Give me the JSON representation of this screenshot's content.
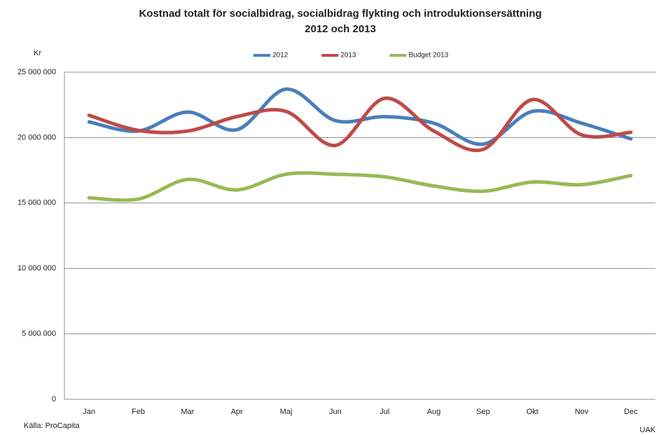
{
  "chart_data": {
    "type": "line",
    "title": [
      "Kostnad totalt för socialbidrag, socialbidrag flykting och introduktionsersättning",
      "2012 och 2013"
    ],
    "y_label": "Kr",
    "categories": [
      "Jan",
      "Feb",
      "Mar",
      "Apr",
      "Maj",
      "Jun",
      "Jul",
      "Aug",
      "Sep",
      "Okt",
      "Nov",
      "Dec"
    ],
    "series": [
      {
        "name": "2012",
        "color": "#4a7ebb",
        "values": [
          21200000,
          20500000,
          21950000,
          20600000,
          23700000,
          21300000,
          21600000,
          21100000,
          19500000,
          22000000,
          21100000,
          19900000
        ]
      },
      {
        "name": "2013",
        "color": "#be4b48",
        "values": [
          21700000,
          20550000,
          20500000,
          21600000,
          22000000,
          19400000,
          23000000,
          20500000,
          19100000,
          22900000,
          20200000,
          20400000
        ]
      },
      {
        "name": "Budget 2013",
        "color": "#98b954",
        "values": [
          15400000,
          15300000,
          16800000,
          16000000,
          17200000,
          17200000,
          17000000,
          16300000,
          15900000,
          16600000,
          16400000,
          17100000
        ]
      }
    ],
    "ylim": [
      0,
      25000000
    ],
    "yticks": [
      0,
      {
        "value": 5000000,
        "label": "5 000 000"
      },
      {
        "value": 10000000,
        "label": "10 000 000"
      },
      {
        "value": 15000000,
        "label": "15 000 000"
      },
      {
        "value": 20000000,
        "label": "20 000 000"
      },
      {
        "value": 25000000,
        "label": "25 000 000"
      }
    ],
    "grid": true,
    "smooth": true,
    "legend": "top",
    "annotations": [
      "Källa: ProCapita",
      "UAK"
    ]
  }
}
